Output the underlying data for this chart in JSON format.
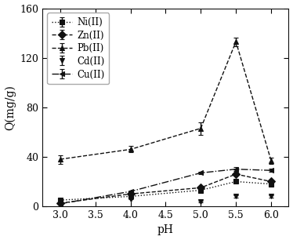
{
  "pH": [
    3.0,
    4.0,
    5.0,
    5.5,
    6.0
  ],
  "series": {
    "Ni(II)": {
      "values": [
        5.0,
        8.0,
        13.0,
        20.0,
        18.0
      ],
      "errors": [
        0.5,
        0.7,
        1.0,
        1.2,
        1.0
      ],
      "marker": "s",
      "linestyle": ":"
    },
    "Zn(II)": {
      "values": [
        2.5,
        10.0,
        15.0,
        26.0,
        20.0
      ],
      "errors": [
        0.4,
        0.6,
        0.9,
        1.2,
        0.9
      ],
      "marker": "D",
      "linestyle": "--"
    },
    "Pb(II)": {
      "values": [
        38.0,
        46.0,
        63.0,
        133.0,
        37.0
      ],
      "errors": [
        3.5,
        2.5,
        5.0,
        3.5,
        2.5
      ],
      "marker": "^",
      "linestyle": "--"
    },
    "Cd(II)": {
      "values": [
        1.5,
        6.0,
        4.0,
        8.0,
        8.0
      ],
      "errors": [
        0.3,
        0.5,
        0.6,
        0.8,
        0.7
      ],
      "marker": "v",
      "linestyle": ""
    },
    "Cu(II)": {
      "values": [
        2.0,
        12.0,
        27.0,
        30.0,
        29.0
      ],
      "errors": [
        0.4,
        0.7,
        1.2,
        1.4,
        1.3
      ],
      "marker": "<",
      "linestyle": "-."
    }
  },
  "series_order": [
    "Ni(II)",
    "Zn(II)",
    "Pb(II)",
    "Cd(II)",
    "Cu(II)"
  ],
  "xlabel": "pH",
  "ylabel": "Q(mg/g)",
  "xlim": [
    2.75,
    6.25
  ],
  "ylim": [
    0,
    160
  ],
  "yticks": [
    0,
    40,
    80,
    120,
    160
  ],
  "xticks": [
    3.0,
    3.5,
    4.0,
    4.5,
    5.0,
    5.5,
    6.0
  ],
  "color": "#111111",
  "axis_fontsize": 10,
  "tick_fontsize": 9,
  "legend_fontsize": 8.5,
  "markersize": 5,
  "linewidth": 1.0,
  "capsize": 2
}
